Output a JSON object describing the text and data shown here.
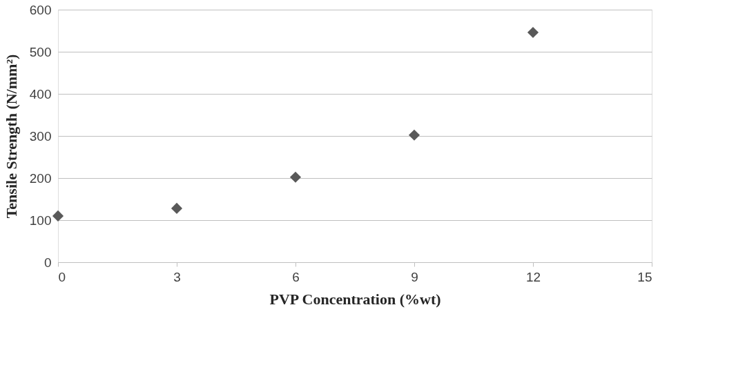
{
  "chart_data": {
    "type": "scatter",
    "xlabel": "PVP Concentration (%wt)",
    "ylabel": "Tensile Strength (N/mm²)",
    "x": [
      0,
      3,
      6,
      9,
      12
    ],
    "series": [
      {
        "color": "#595959",
        "values": [
          110,
          128,
          202,
          302,
          546
        ]
      }
    ],
    "xlim": [
      0,
      15
    ],
    "xticks": [
      0,
      3,
      6,
      9,
      12,
      15
    ],
    "ylim": [
      0,
      600
    ],
    "yticks": [
      0,
      100,
      200,
      300,
      400,
      500,
      600
    ],
    "grid": "y",
    "marker": "diamond"
  }
}
